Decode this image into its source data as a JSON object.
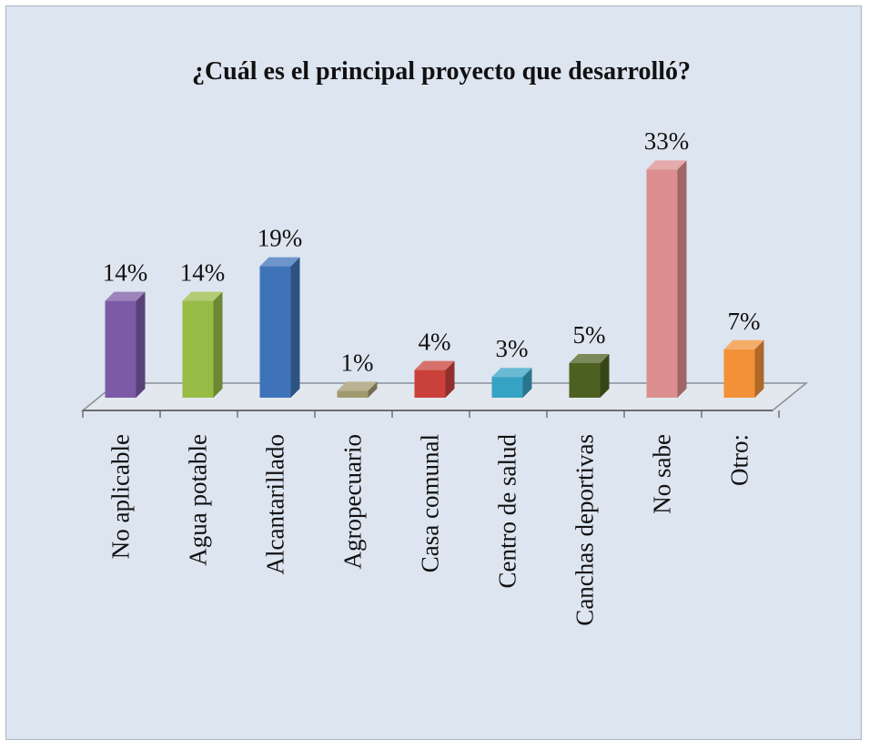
{
  "chart_data": {
    "type": "bar",
    "title": "¿Cuál es el principal proyecto que desarrolló?",
    "categories": [
      "No aplicable",
      "Agua potable",
      "Alcantarillado",
      "Agropecuario",
      "Casa comunal",
      "Centro de salud",
      "Canchas deportivas",
      "No sabe",
      "Otro:"
    ],
    "values": [
      14,
      14,
      19,
      1,
      4,
      3,
      5,
      33,
      7
    ],
    "value_labels": [
      "14%",
      "14%",
      "19%",
      "1%",
      "4%",
      "3%",
      "5%",
      "33%",
      "7%"
    ],
    "colors": [
      "#7b5aa6",
      "#97bb45",
      "#3f73b9",
      "#a29a6f",
      "#c9413a",
      "#37a3c4",
      "#4c6121",
      "#dc8f8e",
      "#f39138"
    ],
    "style": "3d-columns",
    "grid": false,
    "legend": "none",
    "xlabel": "",
    "ylabel": ""
  }
}
